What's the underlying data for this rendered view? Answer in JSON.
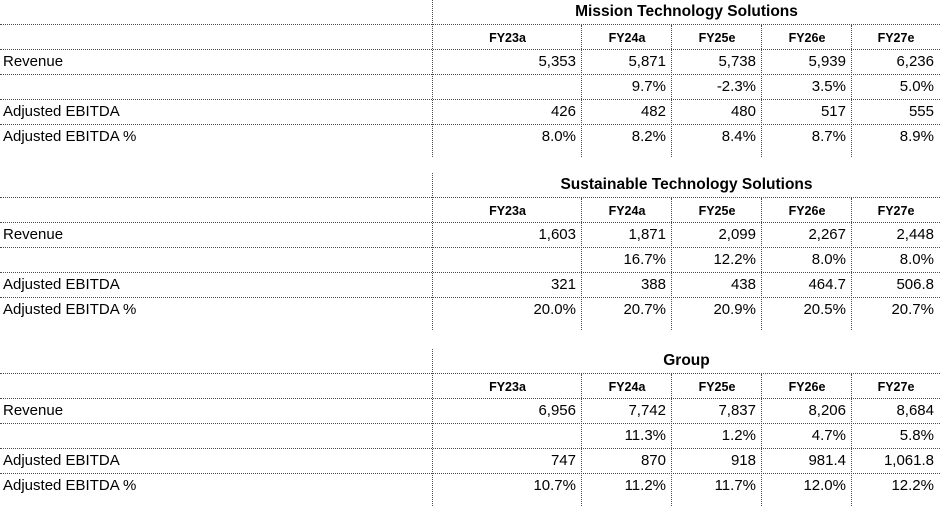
{
  "colors": {
    "background": "#ffffff",
    "text": "#000000",
    "gridline": "#4d4d4d"
  },
  "chart_data": [
    {
      "type": "table",
      "title": "Mission Technology Solutions",
      "columns": [
        "FY23a",
        "FY24a",
        "FY25e",
        "FY26e",
        "FY27e"
      ],
      "rows": [
        {
          "label": "Revenue",
          "values": [
            "5,353",
            "5,871",
            "5,738",
            "5,939",
            "6,236"
          ]
        },
        {
          "label": "",
          "values": [
            "",
            "9.7%",
            "-2.3%",
            "3.5%",
            "5.0%"
          ]
        },
        {
          "label": "Adjusted EBITDA",
          "values": [
            "426",
            "482",
            "480",
            "517",
            "555"
          ]
        },
        {
          "label": "Adjusted EBITDA %",
          "values": [
            "8.0%",
            "8.2%",
            "8.4%",
            "8.7%",
            "8.9%"
          ]
        }
      ]
    },
    {
      "type": "table",
      "title": "Sustainable Technology Solutions",
      "columns": [
        "FY23a",
        "FY24a",
        "FY25e",
        "FY26e",
        "FY27e"
      ],
      "rows": [
        {
          "label": "Revenue",
          "values": [
            "1,603",
            "1,871",
            "2,099",
            "2,267",
            "2,448"
          ]
        },
        {
          "label": "",
          "values": [
            "",
            "16.7%",
            "12.2%",
            "8.0%",
            "8.0%"
          ]
        },
        {
          "label": "Adjusted EBITDA",
          "values": [
            "321",
            "388",
            "438",
            "464.7",
            "506.8"
          ]
        },
        {
          "label": "Adjusted EBITDA %",
          "values": [
            "20.0%",
            "20.7%",
            "20.9%",
            "20.5%",
            "20.7%"
          ]
        }
      ]
    },
    {
      "type": "table",
      "title": "Group",
      "columns": [
        "FY23a",
        "FY24a",
        "FY25e",
        "FY26e",
        "FY27e"
      ],
      "rows": [
        {
          "label": "Revenue",
          "values": [
            "6,956",
            "7,742",
            "7,837",
            "8,206",
            "8,684"
          ]
        },
        {
          "label": "",
          "values": [
            "",
            "11.3%",
            "1.2%",
            "4.7%",
            "5.8%"
          ]
        },
        {
          "label": "Adjusted EBITDA",
          "values": [
            "747",
            "870",
            "918",
            "981.4",
            "1,061.8"
          ]
        },
        {
          "label": "Adjusted EBITDA %",
          "values": [
            "10.7%",
            "11.2%",
            "11.7%",
            "12.0%",
            "12.2%"
          ]
        }
      ]
    }
  ]
}
